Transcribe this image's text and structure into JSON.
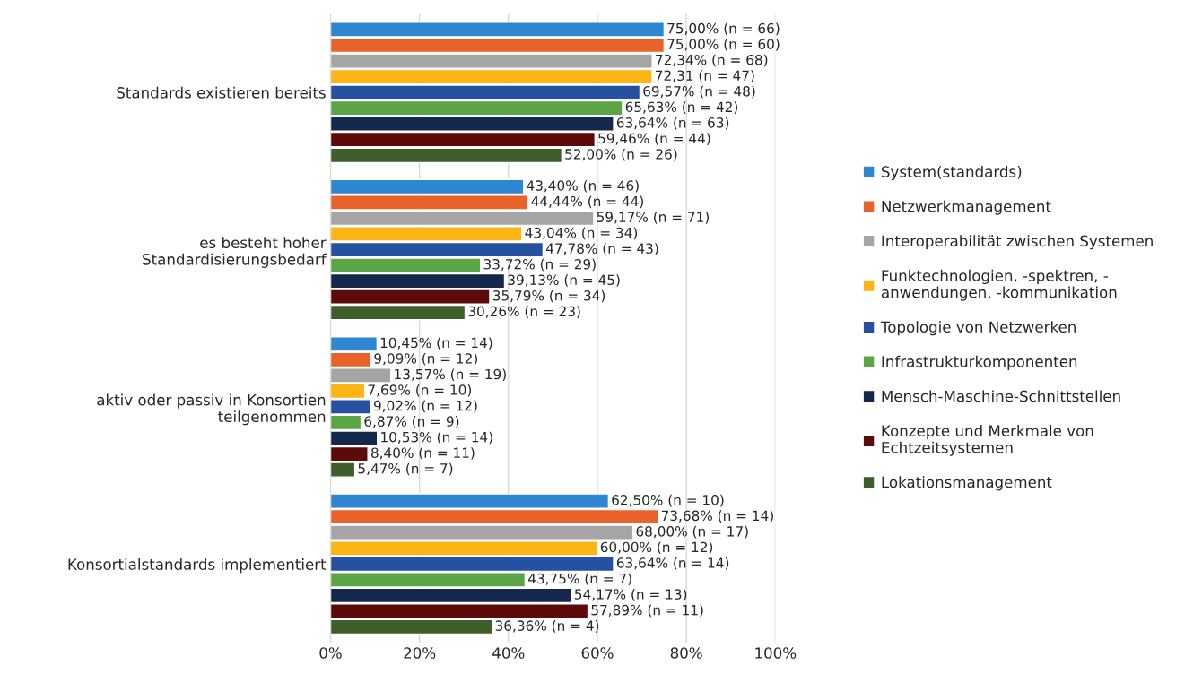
{
  "chart_data": {
    "type": "bar",
    "orientation": "horizontal",
    "categories": [
      "Standards existieren bereits",
      "es besteht hoher\nStandardisierungsbedarf",
      "aktiv oder passiv in Konsortien\nteilgenommen",
      "Konsortialstandards implementiert"
    ],
    "series": [
      {
        "name": "System(standards)",
        "color": "#2e87d0",
        "values": [
          75.0,
          43.4,
          10.45,
          62.5
        ],
        "value_labels": [
          "75,00% (n = 66)",
          "43,40% (n = 46)",
          "10,45% (n = 14)",
          "62,50% (n = 10)"
        ]
      },
      {
        "name": "Netzwerkmanagement",
        "color": "#e8622a",
        "values": [
          75.0,
          44.44,
          9.09,
          73.68
        ],
        "value_labels": [
          "75,00% (n = 60)",
          "44,44% (n = 44)",
          "9,09% (n = 12)",
          "73,68% (n = 14)"
        ]
      },
      {
        "name": "Interoperabilität zwischen Systemen",
        "color": "#a5a5a5",
        "values": [
          72.34,
          59.17,
          13.57,
          68.0
        ],
        "value_labels": [
          "72,34% (n = 68)",
          "59,17% (n = 71)",
          "13,57% (n = 19)",
          "68,00% (n = 17)"
        ]
      },
      {
        "name": "Funktechnologien, -spektren, -\nanwendungen, -kommunikation",
        "color": "#fdb515",
        "values": [
          72.31,
          43.04,
          7.69,
          60.0
        ],
        "value_labels": [
          "72,31 (n = 47)",
          "43,04% (n = 34)",
          "7,69% (n = 10)",
          "60,00% (n = 12)"
        ]
      },
      {
        "name": "Topologie von Netzwerken",
        "color": "#2650a0",
        "values": [
          69.57,
          47.78,
          9.02,
          63.64
        ],
        "value_labels": [
          "69,57% (n = 48)",
          "47,78% (n = 43)",
          "9,02% (n = 12)",
          "63,64% (n = 14)"
        ]
      },
      {
        "name": "Infrastrukturkomponenten",
        "color": "#5aa545",
        "values": [
          65.63,
          33.72,
          6.87,
          43.75
        ],
        "value_labels": [
          "65,63% (n = 42)",
          "33,72% (n = 29)",
          "6,87% (n = 9)",
          "43,75% (n = 7)"
        ]
      },
      {
        "name": "Mensch-Maschine-Schnittstellen",
        "color": "#13284a",
        "values": [
          63.64,
          39.13,
          10.53,
          54.17
        ],
        "value_labels": [
          "63,64% (n = 63)",
          "39,13% (n = 45)",
          "10,53% (n = 14)",
          "54,17% (n = 13)"
        ]
      },
      {
        "name": "Konzepte und Merkmale von\nEchtzeitsystemen",
        "color": "#5c0a0a",
        "values": [
          59.46,
          35.79,
          8.4,
          57.89
        ],
        "value_labels": [
          "59,46% (n = 44)",
          "35,79% (n = 34)",
          "8,40% (n = 11)",
          "57,89% (n = 11)"
        ]
      },
      {
        "name": "Lokationsmanagement",
        "color": "#3e5e2a",
        "values": [
          52.0,
          30.26,
          5.47,
          36.36
        ],
        "value_labels": [
          "52,00% (n = 26)",
          "30,26% (n = 23)",
          "5,47% (n = 7)",
          "36,36% (n = 4)"
        ]
      }
    ],
    "xlim": [
      0,
      100
    ],
    "xticks": [
      {
        "value": 0,
        "label": "0%"
      },
      {
        "value": 20,
        "label": "20%"
      },
      {
        "value": 40,
        "label": "40%"
      },
      {
        "value": 60,
        "label": "60%"
      },
      {
        "value": 80,
        "label": "80%"
      },
      {
        "value": 100,
        "label": "100%"
      }
    ],
    "grid": "x",
    "legend": "right"
  }
}
